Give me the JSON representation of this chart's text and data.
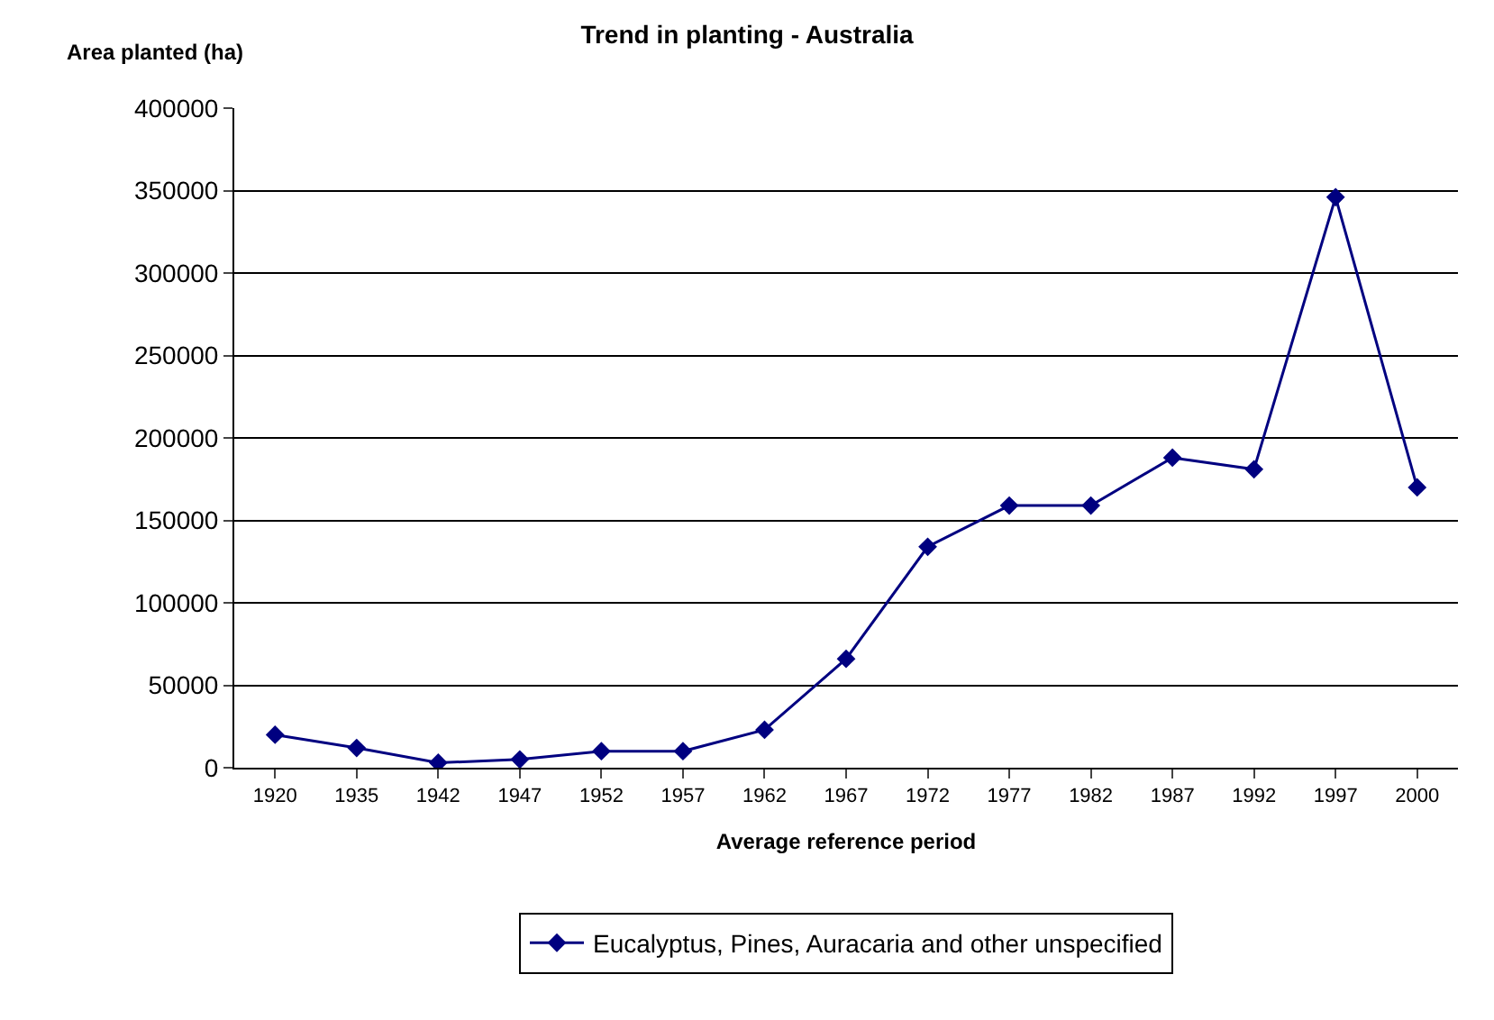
{
  "chart_data": {
    "type": "line",
    "title": "Trend in planting - Australia",
    "xlabel": "Average reference period",
    "ylabel": "Area planted (ha)",
    "categories": [
      "1920",
      "1935",
      "1942",
      "1947",
      "1952",
      "1957",
      "1962",
      "1967",
      "1972",
      "1977",
      "1982",
      "1987",
      "1992",
      "1997",
      "2000"
    ],
    "series": [
      {
        "name": "Eucalyptus, Pines, Auracaria and other unspecified",
        "color": "#000080",
        "values": [
          20000,
          12000,
          3000,
          5000,
          10000,
          10000,
          23000,
          66000,
          134000,
          159000,
          159000,
          188000,
          181000,
          346000,
          170000
        ]
      }
    ],
    "ylim": [
      0,
      400000
    ],
    "yticks": [
      0,
      50000,
      100000,
      150000,
      200000,
      250000,
      300000,
      350000,
      400000
    ],
    "grid": "y",
    "legend": "bottom",
    "marker": "diamond",
    "line_style": "solid"
  }
}
